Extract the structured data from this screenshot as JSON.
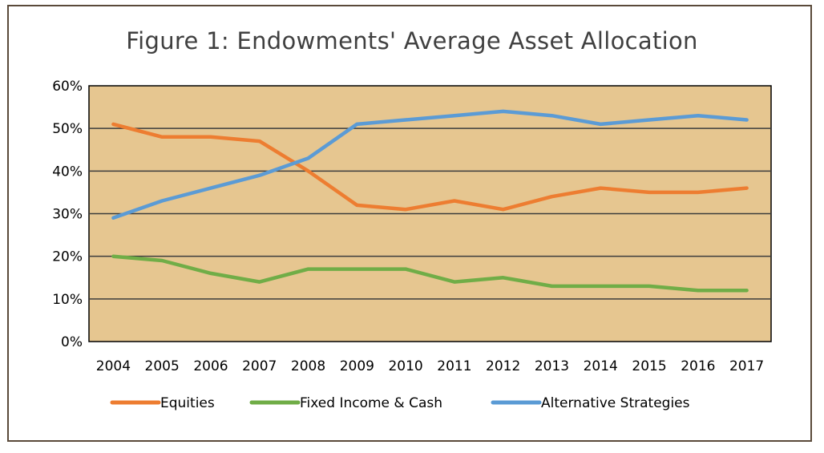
{
  "chart_data": {
    "type": "line",
    "title": "Figure 1: Endowments' Average Asset Allocation",
    "xlabel": "",
    "ylabel": "",
    "x": [
      "2004",
      "2005",
      "2006",
      "2007",
      "2008",
      "2009",
      "2010",
      "2011",
      "2012",
      "2013",
      "2014",
      "2015",
      "2016",
      "2017"
    ],
    "ylim": [
      0,
      60
    ],
    "yticks": [
      "0%",
      "10%",
      "20%",
      "30%",
      "40%",
      "50%",
      "60%"
    ],
    "grid": "horizontal",
    "legend_position": "bottom",
    "plot_background": "#e6c690",
    "series": [
      {
        "name": "Equities",
        "color": "#ed7d31",
        "values": [
          51,
          48,
          48,
          47,
          40,
          32,
          31,
          33,
          31,
          34,
          36,
          35,
          35,
          36
        ]
      },
      {
        "name": "Fixed Income & Cash",
        "color": "#70ad47",
        "values": [
          20,
          19,
          16,
          14,
          17,
          17,
          17,
          14,
          15,
          13,
          13,
          13,
          12,
          12
        ]
      },
      {
        "name": "Alternative Strategies",
        "color": "#5b9bd5",
        "values": [
          29,
          33,
          36,
          39,
          43,
          51,
          52,
          53,
          54,
          53,
          51,
          52,
          53,
          52
        ]
      }
    ]
  }
}
